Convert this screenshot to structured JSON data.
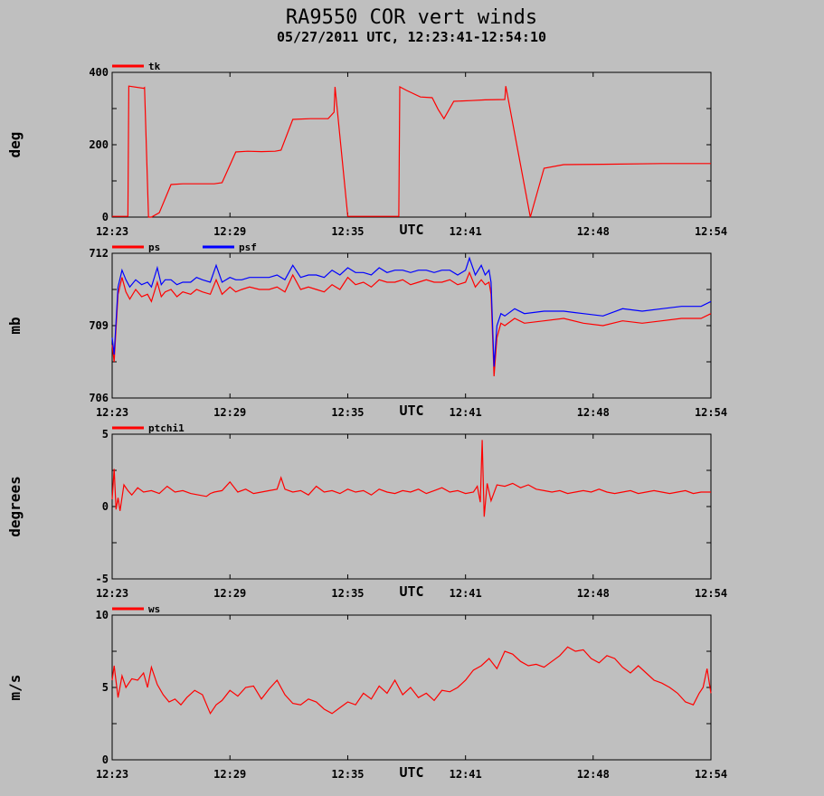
{
  "title": "RA9550 COR vert winds",
  "subtitle": "05/27/2011   UTC, 12:23:41-12:54:10",
  "colors": {
    "background": "#bfbfbf",
    "red": "#ff0000",
    "blue": "#0000ff",
    "axis": "#000000"
  },
  "chart_data": [
    {
      "type": "line",
      "ylabel": "deg",
      "xlabel": "UTC",
      "ylim": [
        0,
        400
      ],
      "yticks": [
        "0",
        "200",
        "400"
      ],
      "xticks": [
        "12:23",
        "12:29",
        "12:35",
        "12:41",
        "12:48",
        "12:54"
      ],
      "series": [
        {
          "name": "tk",
          "color": "#ff0000",
          "x": [
            0.0,
            0.8,
            0.85,
            1.6,
            1.65,
            1.85,
            2.0,
            2.4,
            3.0,
            3.6,
            4.2,
            4.8,
            5.2,
            5.6,
            6.3,
            6.9,
            7.6,
            8.3,
            8.6,
            9.2,
            10.1,
            10.7,
            11.0,
            11.3,
            11.35,
            12.0,
            12.6,
            14.6,
            14.65,
            15.0,
            15.7,
            16.3,
            16.6,
            16.9,
            17.4,
            18.3,
            19.0,
            20.0,
            20.05,
            21.3,
            22.0,
            23.0,
            25.0,
            28.0,
            30.5
          ],
          "values": [
            2,
            2,
            362,
            356,
            358,
            0,
            0,
            12,
            90,
            92,
            92,
            92,
            92,
            95,
            180,
            182,
            181,
            182,
            185,
            270,
            272,
            272,
            272,
            290,
            360,
            2,
            2,
            2,
            360,
            350,
            332,
            330,
            298,
            272,
            320,
            322,
            324,
            325,
            362,
            0,
            135,
            145,
            146,
            148,
            148
          ]
        }
      ]
    },
    {
      "type": "line",
      "ylabel": "mb",
      "xlabel": "UTC",
      "ylim": [
        706,
        712
      ],
      "yticks": [
        "706",
        "709",
        "712"
      ],
      "xticks": [
        "12:23",
        "12:29",
        "12:35",
        "12:41",
        "12:48",
        "12:54"
      ],
      "series": [
        {
          "name": "ps",
          "color": "#ff0000",
          "x": [
            0.0,
            0.1,
            0.3,
            0.5,
            0.7,
            0.9,
            1.2,
            1.5,
            1.8,
            2.0,
            2.3,
            2.5,
            2.7,
            3.0,
            3.3,
            3.6,
            4.0,
            4.3,
            4.6,
            5.0,
            5.3,
            5.6,
            6.0,
            6.3,
            6.6,
            7.0,
            7.5,
            8.0,
            8.4,
            8.8,
            9.2,
            9.6,
            10.0,
            10.4,
            10.8,
            11.2,
            11.6,
            12.0,
            12.4,
            12.8,
            13.2,
            13.6,
            14.0,
            14.4,
            14.8,
            15.2,
            15.6,
            16.0,
            16.4,
            16.8,
            17.2,
            17.6,
            18.0,
            18.2,
            18.5,
            18.8,
            19.0,
            19.2,
            19.3,
            19.45,
            19.6,
            19.8,
            20.0,
            20.5,
            21.0,
            22.0,
            23.0,
            24.0,
            25.0,
            26.0,
            27.0,
            28.0,
            29.0,
            30.0,
            30.5
          ],
          "values": [
            708.2,
            707.5,
            710.3,
            711.0,
            710.4,
            710.1,
            710.5,
            710.2,
            710.3,
            710.0,
            710.8,
            710.2,
            710.4,
            710.5,
            710.2,
            710.4,
            710.3,
            710.5,
            710.4,
            710.3,
            710.9,
            710.3,
            710.6,
            710.4,
            710.5,
            710.6,
            710.5,
            710.5,
            710.6,
            710.4,
            711.1,
            710.5,
            710.6,
            710.5,
            710.4,
            710.7,
            710.5,
            711.0,
            710.7,
            710.8,
            710.6,
            710.9,
            710.8,
            710.8,
            710.9,
            710.7,
            710.8,
            710.9,
            710.8,
            710.8,
            710.9,
            710.7,
            710.8,
            711.2,
            710.6,
            710.9,
            710.7,
            710.8,
            710.3,
            706.9,
            708.5,
            709.1,
            709.0,
            709.3,
            709.1,
            709.2,
            709.3,
            709.1,
            709.0,
            709.2,
            709.1,
            709.2,
            709.3,
            709.3,
            709.5
          ]
        },
        {
          "name": "psf",
          "color": "#0000ff",
          "x": [
            0.0,
            0.1,
            0.3,
            0.5,
            0.7,
            0.9,
            1.2,
            1.5,
            1.8,
            2.0,
            2.3,
            2.5,
            2.7,
            3.0,
            3.3,
            3.6,
            4.0,
            4.3,
            4.6,
            5.0,
            5.3,
            5.6,
            6.0,
            6.3,
            6.6,
            7.0,
            7.5,
            8.0,
            8.4,
            8.8,
            9.2,
            9.6,
            10.0,
            10.4,
            10.8,
            11.2,
            11.6,
            12.0,
            12.4,
            12.8,
            13.2,
            13.6,
            14.0,
            14.4,
            14.8,
            15.2,
            15.6,
            16.0,
            16.4,
            16.8,
            17.2,
            17.6,
            18.0,
            18.2,
            18.5,
            18.8,
            19.0,
            19.2,
            19.3,
            19.45,
            19.6,
            19.8,
            20.0,
            20.5,
            21.0,
            22.0,
            23.0,
            24.0,
            25.0,
            26.0,
            27.0,
            28.0,
            29.0,
            30.0,
            30.5
          ],
          "values": [
            708.5,
            707.8,
            710.6,
            711.3,
            710.9,
            710.6,
            710.9,
            710.7,
            710.8,
            710.6,
            711.4,
            710.7,
            710.9,
            710.9,
            710.7,
            710.8,
            710.8,
            711.0,
            710.9,
            710.8,
            711.5,
            710.8,
            711.0,
            710.9,
            710.9,
            711.0,
            711.0,
            711.0,
            711.1,
            710.9,
            711.5,
            711.0,
            711.1,
            711.1,
            711.0,
            711.3,
            711.1,
            711.4,
            711.2,
            711.2,
            711.1,
            711.4,
            711.2,
            711.3,
            711.3,
            711.2,
            711.3,
            711.3,
            711.2,
            711.3,
            711.3,
            711.1,
            711.3,
            711.8,
            711.1,
            711.5,
            711.1,
            711.3,
            710.8,
            707.3,
            709.0,
            709.5,
            709.4,
            709.7,
            709.5,
            709.6,
            709.6,
            709.5,
            709.4,
            709.7,
            709.6,
            709.7,
            709.8,
            709.8,
            710.0
          ]
        }
      ]
    },
    {
      "type": "line",
      "ylabel": "degrees",
      "xlabel": "UTC",
      "ylim": [
        -5,
        5
      ],
      "yticks": [
        "-5",
        "0",
        "5"
      ],
      "xticks": [
        "12:23",
        "12:29",
        "12:35",
        "12:41",
        "12:48",
        "12:54"
      ],
      "series": [
        {
          "name": "ptchi1",
          "color": "#ff0000",
          "x": [
            0.0,
            0.1,
            0.2,
            0.3,
            0.4,
            0.6,
            0.8,
            1.0,
            1.3,
            1.6,
            2.0,
            2.4,
            2.8,
            3.2,
            3.6,
            4.0,
            4.4,
            4.8,
            5.0,
            5.2,
            5.6,
            6.0,
            6.4,
            6.8,
            7.2,
            7.6,
            8.0,
            8.4,
            8.6,
            8.8,
            9.2,
            9.6,
            10.0,
            10.4,
            10.8,
            11.2,
            11.6,
            12.0,
            12.4,
            12.8,
            13.2,
            13.6,
            14.0,
            14.4,
            14.8,
            15.2,
            15.6,
            16.0,
            16.4,
            16.8,
            17.2,
            17.6,
            18.0,
            18.4,
            18.6,
            18.75,
            18.85,
            18.95,
            19.1,
            19.3,
            19.6,
            20.0,
            20.4,
            20.8,
            21.2,
            21.6,
            22.0,
            22.4,
            22.8,
            23.2,
            23.6,
            24.0,
            24.4,
            24.8,
            25.2,
            25.6,
            26.0,
            26.4,
            26.8,
            27.2,
            27.6,
            28.0,
            28.4,
            28.8,
            29.2,
            29.6,
            30.0,
            30.5
          ],
          "values": [
            0.5,
            2.6,
            -0.2,
            0.6,
            -0.3,
            1.5,
            1.1,
            0.8,
            1.3,
            1.0,
            1.1,
            0.9,
            1.4,
            1.0,
            1.1,
            0.9,
            0.8,
            0.7,
            0.9,
            1.0,
            1.1,
            1.7,
            1.0,
            1.2,
            0.9,
            1.0,
            1.1,
            1.2,
            2.0,
            1.2,
            1.0,
            1.1,
            0.8,
            1.4,
            1.0,
            1.1,
            0.9,
            1.2,
            1.0,
            1.1,
            0.8,
            1.2,
            1.0,
            0.9,
            1.1,
            1.0,
            1.2,
            0.9,
            1.1,
            1.3,
            1.0,
            1.1,
            0.9,
            1.0,
            1.4,
            0.3,
            4.6,
            -0.7,
            1.6,
            0.4,
            1.5,
            1.4,
            1.6,
            1.3,
            1.5,
            1.2,
            1.1,
            1.0,
            1.1,
            0.9,
            1.0,
            1.1,
            1.0,
            1.2,
            1.0,
            0.9,
            1.0,
            1.1,
            0.9,
            1.0,
            1.1,
            1.0,
            0.9,
            1.0,
            1.1,
            0.9,
            1.0,
            1.0
          ]
        }
      ]
    },
    {
      "type": "line",
      "ylabel": "m/s",
      "xlabel": "UTC",
      "ylim": [
        0,
        10
      ],
      "yticks": [
        "0",
        "5",
        "10"
      ],
      "xticks": [
        "12:23",
        "12:29",
        "12:35",
        "12:41",
        "12:48",
        "12:54"
      ],
      "series": [
        {
          "name": "ws",
          "color": "#ff0000",
          "x": [
            0.0,
            0.1,
            0.3,
            0.5,
            0.7,
            1.0,
            1.3,
            1.6,
            1.8,
            2.0,
            2.3,
            2.6,
            2.9,
            3.2,
            3.5,
            3.8,
            4.2,
            4.6,
            5.0,
            5.3,
            5.6,
            6.0,
            6.4,
            6.8,
            7.2,
            7.6,
            8.0,
            8.4,
            8.8,
            9.2,
            9.6,
            10.0,
            10.4,
            10.8,
            11.2,
            11.6,
            12.0,
            12.4,
            12.8,
            13.2,
            13.6,
            14.0,
            14.4,
            14.8,
            15.2,
            15.6,
            16.0,
            16.4,
            16.8,
            17.2,
            17.6,
            18.0,
            18.4,
            18.8,
            19.2,
            19.6,
            20.0,
            20.4,
            20.8,
            21.2,
            21.6,
            22.0,
            22.4,
            22.8,
            23.2,
            23.6,
            24.0,
            24.4,
            24.8,
            25.2,
            25.6,
            26.0,
            26.4,
            26.8,
            27.2,
            27.6,
            28.0,
            28.4,
            28.8,
            29.2,
            29.6,
            29.9,
            30.1,
            30.3,
            30.5
          ],
          "values": [
            5.5,
            6.5,
            4.3,
            5.8,
            5.0,
            5.6,
            5.5,
            6.0,
            5.0,
            6.4,
            5.2,
            4.5,
            4.0,
            4.2,
            3.8,
            4.3,
            4.8,
            4.5,
            3.2,
            3.8,
            4.1,
            4.8,
            4.4,
            5.0,
            5.1,
            4.2,
            4.9,
            5.5,
            4.5,
            3.9,
            3.8,
            4.2,
            4.0,
            3.5,
            3.2,
            3.6,
            4.0,
            3.8,
            4.6,
            4.2,
            5.1,
            4.6,
            5.5,
            4.5,
            5.0,
            4.3,
            4.6,
            4.1,
            4.8,
            4.7,
            5.0,
            5.5,
            6.2,
            6.5,
            7.0,
            6.3,
            7.5,
            7.3,
            6.8,
            6.5,
            6.6,
            6.4,
            6.8,
            7.2,
            7.8,
            7.5,
            7.6,
            7.0,
            6.7,
            7.2,
            7.0,
            6.4,
            6.0,
            6.5,
            6.0,
            5.5,
            5.3,
            5.0,
            4.6,
            4.0,
            3.8,
            4.6,
            5.0,
            6.3,
            4.6
          ]
        }
      ]
    }
  ]
}
